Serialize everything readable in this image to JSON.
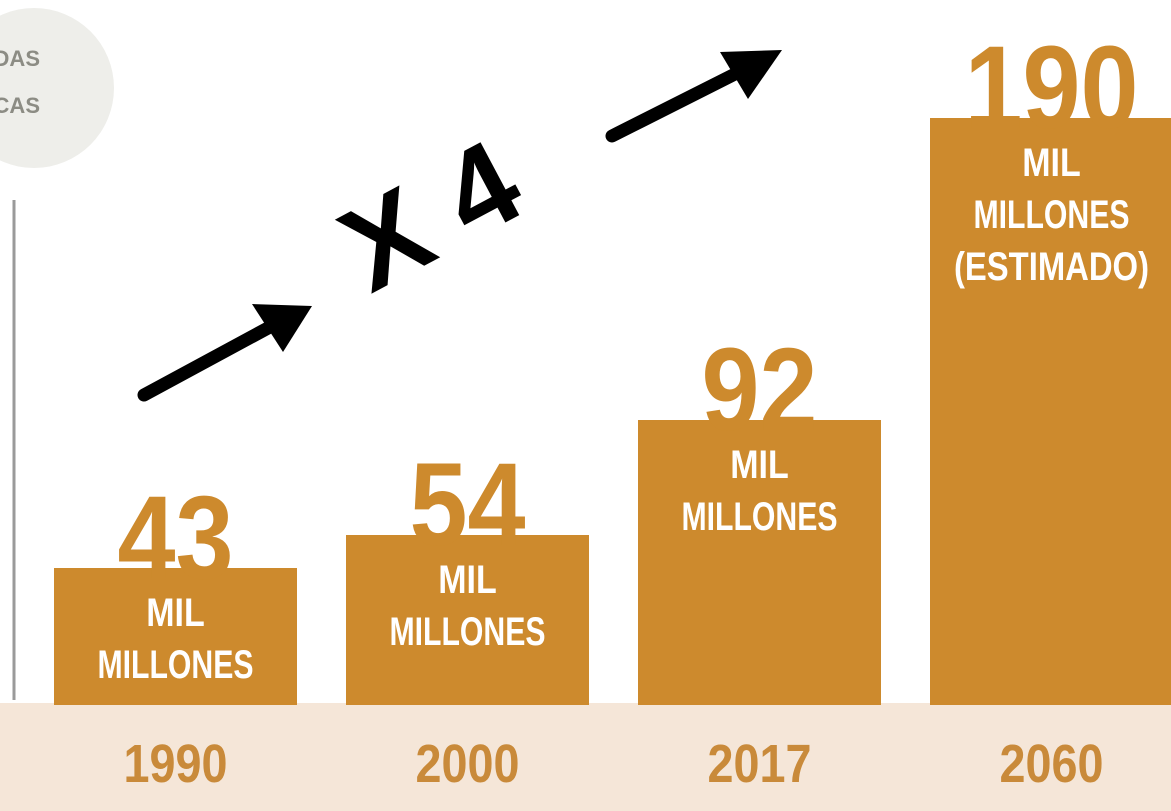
{
  "unit_badge": {
    "line1": "ELADAS",
    "line2": "TRICAS"
  },
  "annotation": {
    "text": "X 4"
  },
  "colors": {
    "bar": "#CD8A2D",
    "value_text": "#CD8A2D",
    "bar_label_text": "#FFFFFF",
    "footer_band": "#F5E6D8",
    "year_text": "#C98A3A",
    "badge_bg": "#EEEEEA",
    "badge_text": "#8C8C84",
    "annotation": "#000000",
    "axis_line": "#9A9A9A"
  },
  "chart_data": {
    "type": "bar",
    "categories": [
      "1990",
      "2000",
      "2017",
      "2060"
    ],
    "values": [
      43,
      54,
      92,
      190
    ],
    "value_labels": [
      "43",
      "54",
      "92",
      "190"
    ],
    "bar_labels": [
      [
        "MIL",
        "MILLONES"
      ],
      [
        "MIL",
        "MILLONES"
      ],
      [
        "MIL",
        "MILLONES"
      ],
      [
        "MIL",
        "MILLONES",
        "(ESTIMADO)"
      ]
    ],
    "ylim": [
      0,
      190
    ]
  }
}
